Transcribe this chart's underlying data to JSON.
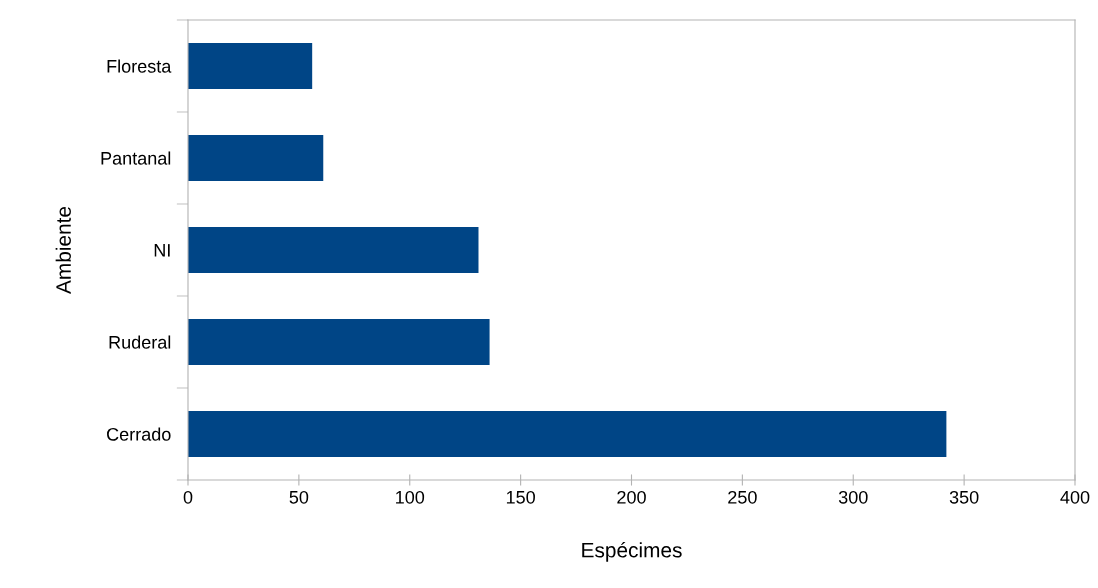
{
  "chart_data": {
    "type": "bar",
    "orientation": "horizontal",
    "xlabel": "Espécimes",
    "ylabel": "Ambiente",
    "categories": [
      "Floresta",
      "Pantanal",
      "NI",
      "Ruderal",
      "Cerrado"
    ],
    "values": [
      56,
      61,
      131,
      136,
      342
    ],
    "color": "#004586",
    "xlim": [
      0,
      400
    ],
    "xticks": [
      0,
      50,
      100,
      150,
      200,
      250,
      300,
      350,
      400
    ],
    "grid": false,
    "legend": false
  }
}
